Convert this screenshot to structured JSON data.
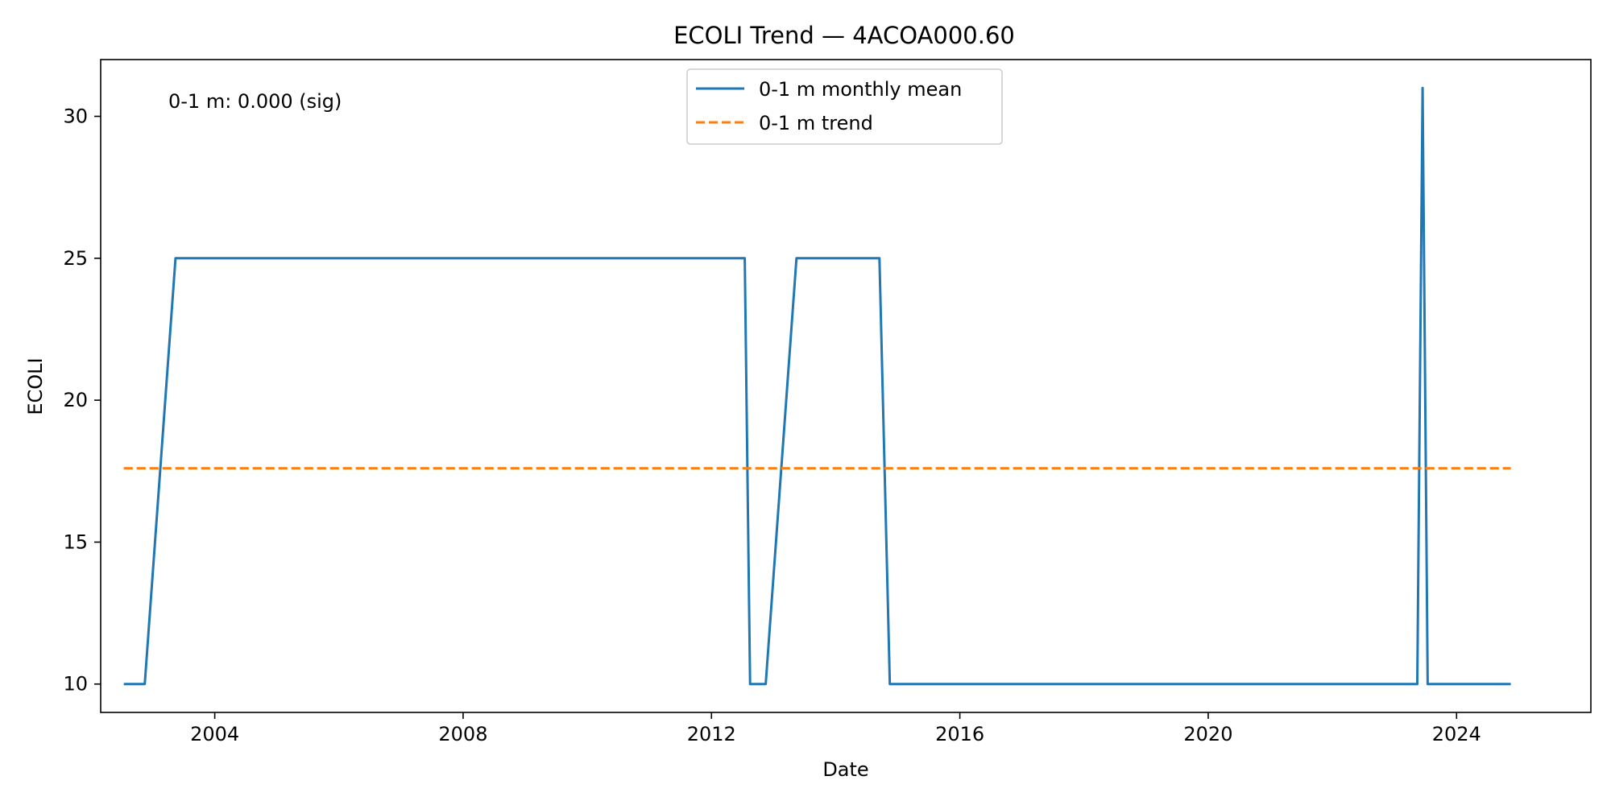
{
  "chart_data": {
    "type": "line",
    "title": "ECOLI Trend — 4ACOA000.60",
    "xlabel": "Date",
    "ylabel": "ECOLI",
    "xlim": [
      "2002-03-01",
      "2026-03-01"
    ],
    "ylim": [
      9,
      32
    ],
    "x_ticks": [
      "2004-01-01",
      "2008-01-01",
      "2012-01-01",
      "2016-01-01",
      "2020-01-01",
      "2024-01-01"
    ],
    "x_tick_labels": [
      "2004",
      "2008",
      "2012",
      "2016",
      "2020",
      "2024"
    ],
    "y_ticks": [
      10,
      15,
      20,
      25,
      30
    ],
    "y_tick_labels": [
      "10",
      "15",
      "20",
      "25",
      "30"
    ],
    "grid": false,
    "legend_position": "top-center",
    "annotation": "0-1 m: 0.000 (sig)",
    "series": [
      {
        "name": "0-1 m monthly mean",
        "style": "solid",
        "color": "#1f77b4",
        "points": [
          [
            "2002-07-15",
            10
          ],
          [
            "2002-11-15",
            10
          ],
          [
            "2003-05-15",
            25
          ],
          [
            "2012-07-15",
            25
          ],
          [
            "2012-08-15",
            10
          ],
          [
            "2012-11-15",
            10
          ],
          [
            "2013-05-15",
            25
          ],
          [
            "2014-09-15",
            25
          ],
          [
            "2014-11-15",
            10
          ],
          [
            "2023-05-15",
            10
          ],
          [
            "2023-06-15",
            31
          ],
          [
            "2023-07-15",
            10
          ],
          [
            "2024-11-15",
            10
          ]
        ]
      },
      {
        "name": "0-1 m trend",
        "style": "dashed",
        "color": "#ff7f0e",
        "points": [
          [
            "2002-07-15",
            17.6
          ],
          [
            "2024-11-15",
            17.6
          ]
        ]
      }
    ]
  }
}
